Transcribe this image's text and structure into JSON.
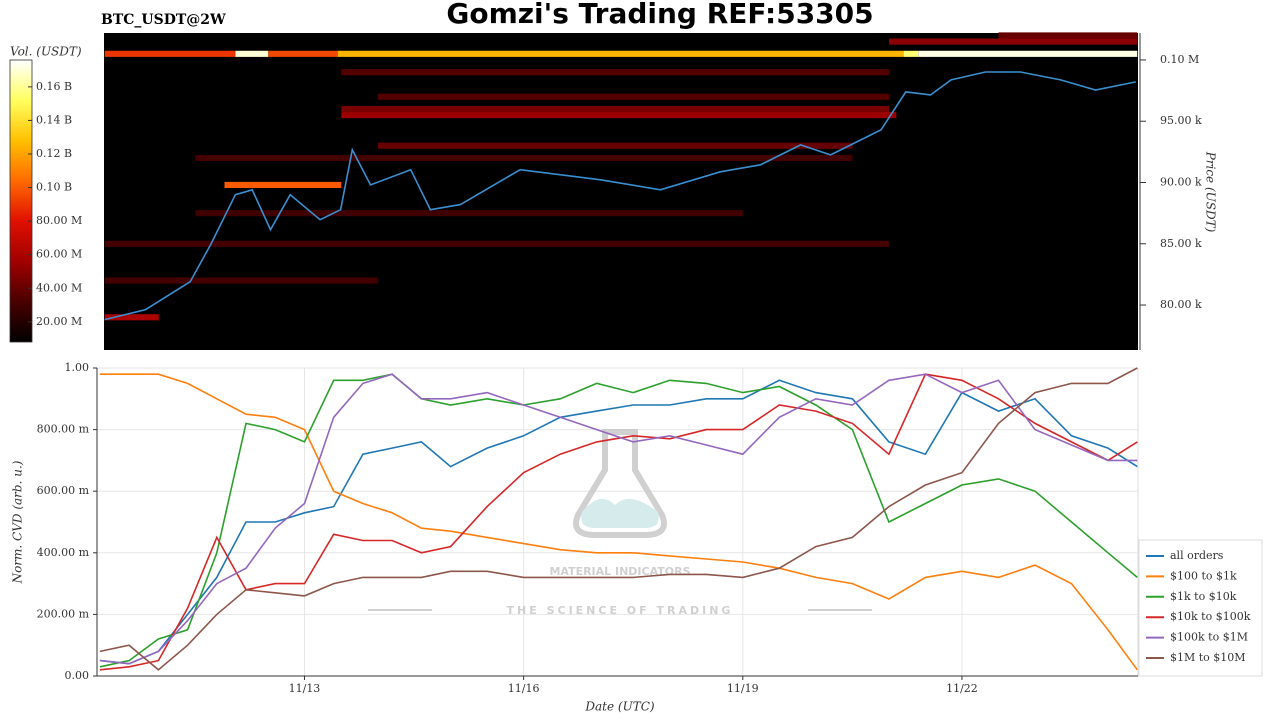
{
  "watermark": {
    "name": "MATERIAL INDICATORS",
    "tagline": "THE SCIENCE OF TRADING"
  },
  "chart_data": [
    {
      "type": "heatmap",
      "title": "Gomzi's Trading REF:53305",
      "subtitle": "BTC_USDT@2W",
      "colorbar_label": "Vol. (USDT)",
      "y2label": "Price (USDT)",
      "colormap": [
        "#000000",
        "#4a0000",
        "#a00000",
        "#e01000",
        "#ff6a00",
        "#ffc000",
        "#ffff60",
        "#ffffff"
      ],
      "clim": [
        8000000,
        176000000
      ],
      "colorbar_ticks": [
        {
          "value": 20000000,
          "label": "20.00 M"
        },
        {
          "value": 40000000,
          "label": "40.00 M"
        },
        {
          "value": 60000000,
          "label": "60.00 M"
        },
        {
          "value": 80000000,
          "label": "80.00 M"
        },
        {
          "value": 100000000,
          "label": "0.10 B"
        },
        {
          "value": 120000000,
          "label": "0.12 B"
        },
        {
          "value": 140000000,
          "label": "0.14 B"
        },
        {
          "value": 160000000,
          "label": "0.16 B"
        }
      ],
      "xlim": [
        10.25,
        24.41
      ],
      "y2lim": [
        76330,
        102200
      ],
      "y2ticks": [
        {
          "value": 80000,
          "label": "80.00 k"
        },
        {
          "value": 85000,
          "label": "85.00 k"
        },
        {
          "value": 90000,
          "label": "90.00 k"
        },
        {
          "value": 95000,
          "label": "95.00 k"
        },
        {
          "value": 100000,
          "label": "0.10 M"
        }
      ],
      "bin_size": 500,
      "bands": [
        {
          "price": 100500,
          "start": 10.26,
          "end": 12.05,
          "volume": 90000000
        },
        {
          "price": 100500,
          "start": 12.05,
          "end": 12.5,
          "volume": 170000000
        },
        {
          "price": 100500,
          "start": 12.5,
          "end": 13.45,
          "volume": 95000000
        },
        {
          "price": 100500,
          "start": 13.45,
          "end": 21.2,
          "volume": 125000000
        },
        {
          "price": 100500,
          "start": 21.2,
          "end": 21.4,
          "volume": 155000000
        },
        {
          "price": 100500,
          "start": 21.4,
          "end": 24.4,
          "volume": 172000000
        },
        {
          "price": 89800,
          "start": 11.9,
          "end": 13.5,
          "volume": 100000000
        },
        {
          "price": 95500,
          "start": 13.5,
          "end": 21.1,
          "volume": 55000000
        },
        {
          "price": 96000,
          "start": 13.5,
          "end": 21.0,
          "volume": 45000000
        },
        {
          "price": 93000,
          "start": 14.0,
          "end": 20.5,
          "volume": 40000000
        },
        {
          "price": 101500,
          "start": 21.0,
          "end": 24.4,
          "volume": 50000000
        },
        {
          "price": 102000,
          "start": 22.5,
          "end": 24.4,
          "volume": 40000000
        },
        {
          "price": 99000,
          "start": 13.5,
          "end": 21.0,
          "volume": 35000000
        },
        {
          "price": 97000,
          "start": 14.0,
          "end": 21.0,
          "volume": 35000000
        },
        {
          "price": 92000,
          "start": 11.5,
          "end": 20.5,
          "volume": 30000000
        },
        {
          "price": 87500,
          "start": 11.5,
          "end": 19.0,
          "volume": 28000000
        },
        {
          "price": 85000,
          "start": 10.26,
          "end": 21.0,
          "volume": 30000000
        },
        {
          "price": 82000,
          "start": 10.26,
          "end": 14.0,
          "volume": 30000000
        },
        {
          "price": 79000,
          "start": 10.26,
          "end": 11.0,
          "volume": 60000000
        }
      ],
      "price": {
        "color": "#3a8fd0",
        "x": [
          10.26,
          10.82,
          11.43,
          11.71,
          12.05,
          12.28,
          12.53,
          12.8,
          13.21,
          13.49,
          13.65,
          13.9,
          14.45,
          14.72,
          15.13,
          15.95,
          17.05,
          17.87,
          18.69,
          19.24,
          19.79,
          20.2,
          20.89,
          21.23,
          21.57,
          21.85,
          22.32,
          22.8,
          23.35,
          23.83,
          24.38
        ],
        "values": [
          78810,
          79630,
          81900,
          84920,
          89000,
          89400,
          86150,
          89000,
          86960,
          87780,
          92670,
          89800,
          91040,
          87780,
          88200,
          91040,
          90220,
          89400,
          90870,
          91440,
          93070,
          92250,
          94290,
          97390,
          97150,
          98370,
          99020,
          99020,
          98370,
          97550,
          98210
        ]
      }
    },
    {
      "type": "line",
      "xlabel": "Date (UTC)",
      "ylabel": "Norm. CVD (arb. u.)",
      "grid": true,
      "legend": "lower right",
      "xlim": [
        10.16,
        24.41
      ],
      "ylim": [
        0,
        1
      ],
      "xticks": [
        {
          "value": 13,
          "label": "11/13"
        },
        {
          "value": 16,
          "label": "11/16"
        },
        {
          "value": 19,
          "label": "11/19"
        },
        {
          "value": 22,
          "label": "11/22"
        }
      ],
      "yticks": [
        {
          "value": 0,
          "label": "0.00"
        },
        {
          "value": 0.2,
          "label": "200.00 m"
        },
        {
          "value": 0.4,
          "label": "400.00 m"
        },
        {
          "value": 0.6,
          "label": "600.00 m"
        },
        {
          "value": 0.8,
          "label": "800.00 m"
        },
        {
          "value": 1,
          "label": "1.00"
        }
      ],
      "x": [
        10.2,
        10.6,
        11.0,
        11.4,
        11.8,
        12.2,
        12.6,
        13.0,
        13.4,
        13.8,
        14.2,
        14.6,
        15.0,
        15.5,
        16.0,
        16.5,
        17.0,
        17.5,
        18.0,
        18.5,
        19.0,
        19.5,
        20.0,
        20.5,
        21.0,
        21.5,
        22.0,
        22.5,
        23.0,
        23.5,
        24.0,
        24.4
      ],
      "series": [
        {
          "name": "all orders",
          "color": "#1f77b4",
          "values": [
            0.05,
            0.04,
            0.08,
            0.2,
            0.32,
            0.5,
            0.5,
            0.53,
            0.55,
            0.72,
            0.74,
            0.76,
            0.68,
            0.74,
            0.78,
            0.84,
            0.86,
            0.88,
            0.88,
            0.9,
            0.9,
            0.96,
            0.92,
            0.9,
            0.76,
            0.72,
            0.92,
            0.86,
            0.9,
            0.78,
            0.74,
            0.68
          ]
        },
        {
          "name": "$100 to $1k",
          "color": "#ff7f0e",
          "values": [
            0.98,
            0.98,
            0.98,
            0.95,
            0.9,
            0.85,
            0.84,
            0.8,
            0.6,
            0.56,
            0.53,
            0.48,
            0.47,
            0.45,
            0.43,
            0.41,
            0.4,
            0.4,
            0.39,
            0.38,
            0.37,
            0.35,
            0.32,
            0.3,
            0.25,
            0.32,
            0.34,
            0.32,
            0.36,
            0.3,
            0.15,
            0.02
          ]
        },
        {
          "name": "$1k to $10k",
          "color": "#2ca02c",
          "values": [
            0.03,
            0.05,
            0.12,
            0.15,
            0.4,
            0.82,
            0.8,
            0.76,
            0.96,
            0.96,
            0.98,
            0.9,
            0.88,
            0.9,
            0.88,
            0.9,
            0.95,
            0.92,
            0.96,
            0.95,
            0.92,
            0.94,
            0.88,
            0.8,
            0.5,
            0.56,
            0.62,
            0.64,
            0.6,
            0.5,
            0.4,
            0.32
          ]
        },
        {
          "name": "$10k to $100k",
          "color": "#d62728",
          "values": [
            0.02,
            0.03,
            0.05,
            0.22,
            0.45,
            0.28,
            0.3,
            0.3,
            0.46,
            0.44,
            0.44,
            0.4,
            0.42,
            0.55,
            0.66,
            0.72,
            0.76,
            0.78,
            0.77,
            0.8,
            0.8,
            0.88,
            0.86,
            0.82,
            0.72,
            0.98,
            0.96,
            0.9,
            0.82,
            0.76,
            0.7,
            0.76
          ]
        },
        {
          "name": "$100k to $1M",
          "color": "#9467bd",
          "values": [
            0.05,
            0.04,
            0.08,
            0.18,
            0.3,
            0.35,
            0.48,
            0.56,
            0.84,
            0.95,
            0.98,
            0.9,
            0.9,
            0.92,
            0.88,
            0.84,
            0.8,
            0.76,
            0.78,
            0.75,
            0.72,
            0.84,
            0.9,
            0.88,
            0.96,
            0.98,
            0.92,
            0.96,
            0.8,
            0.75,
            0.7,
            0.7
          ]
        },
        {
          "name": "$1M to $10M",
          "color": "#8c564b",
          "values": [
            0.08,
            0.1,
            0.02,
            0.1,
            0.2,
            0.28,
            0.27,
            0.26,
            0.3,
            0.32,
            0.32,
            0.32,
            0.34,
            0.34,
            0.32,
            0.32,
            0.32,
            0.32,
            0.33,
            0.33,
            0.32,
            0.35,
            0.42,
            0.45,
            0.55,
            0.62,
            0.66,
            0.82,
            0.92,
            0.95,
            0.95,
            1.0
          ]
        }
      ]
    }
  ]
}
